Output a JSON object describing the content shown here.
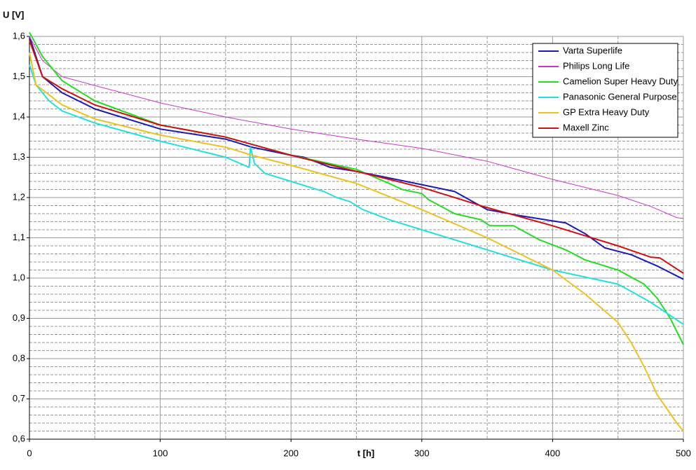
{
  "chart_data": {
    "type": "line",
    "ylabel": "U [V]",
    "xlabel": "t [h]",
    "xlim": [
      0,
      500
    ],
    "xticks": [
      0,
      100,
      200,
      300,
      400,
      500
    ],
    "xminorticks": [
      50,
      150,
      250,
      350,
      450
    ],
    "ylim": [
      0.6,
      1.6
    ],
    "yticks": [
      {
        "value": 0.6,
        "label": "0,6"
      },
      {
        "value": 0.7,
        "label": "0,7"
      },
      {
        "value": 0.8,
        "label": "0,8"
      },
      {
        "value": 0.9,
        "label": "0,9"
      },
      {
        "value": 1.0,
        "label": "1,0"
      },
      {
        "value": 1.1,
        "label": "1,1"
      },
      {
        "value": 1.2,
        "label": "1,2"
      },
      {
        "value": 1.3,
        "label": "1,3"
      },
      {
        "value": 1.4,
        "label": "1,4"
      },
      {
        "value": 1.5,
        "label": "1,5"
      },
      {
        "value": 1.6,
        "label": "1,6"
      }
    ],
    "yminorticks": [
      0.62,
      0.64,
      0.66,
      0.68,
      0.72,
      0.74,
      0.76,
      0.78,
      0.82,
      0.84,
      0.86,
      0.88,
      0.92,
      0.94,
      0.96,
      0.98,
      1.02,
      1.04,
      1.06,
      1.08,
      1.12,
      1.14,
      1.16,
      1.18,
      1.22,
      1.24,
      1.26,
      1.28,
      1.32,
      1.34,
      1.36,
      1.38,
      1.42,
      1.44,
      1.46,
      1.48,
      1.52,
      1.54,
      1.56,
      1.58
    ],
    "grid": true,
    "legend": "upper right",
    "series": [
      {
        "name": "Varta Superlife",
        "color": "#1a1ab4",
        "x": [
          0,
          10,
          25,
          50,
          100,
          150,
          170,
          200,
          210,
          230,
          250,
          300,
          325,
          350,
          375,
          400,
          410,
          425,
          440,
          460,
          480,
          500
        ],
        "values": [
          1.6,
          1.5,
          1.46,
          1.42,
          1.37,
          1.345,
          1.325,
          1.305,
          1.3,
          1.275,
          1.265,
          1.232,
          1.215,
          1.17,
          1.155,
          1.142,
          1.137,
          1.11,
          1.075,
          1.058,
          1.03,
          0.997
        ]
      },
      {
        "name": "Philips Long Life",
        "color": "#cc33cc",
        "x": [
          0,
          10,
          25,
          50,
          100,
          150,
          200,
          250,
          300,
          350,
          400,
          450,
          475,
          495,
          500
        ],
        "values": [
          1.6,
          1.54,
          1.5,
          1.478,
          1.435,
          1.4,
          1.37,
          1.345,
          1.322,
          1.29,
          1.245,
          1.205,
          1.178,
          1.15,
          1.148
        ]
      },
      {
        "name": "Camelion Super Heavy Duty",
        "color": "#22dd22",
        "x": [
          0,
          10,
          25,
          50,
          100,
          150,
          200,
          250,
          275,
          285,
          300,
          305,
          325,
          345,
          352,
          370,
          390,
          410,
          425,
          450,
          470,
          480,
          490,
          500
        ],
        "values": [
          1.61,
          1.55,
          1.49,
          1.44,
          1.38,
          1.35,
          1.305,
          1.27,
          1.235,
          1.22,
          1.21,
          1.195,
          1.16,
          1.145,
          1.13,
          1.13,
          1.095,
          1.07,
          1.045,
          1.02,
          0.985,
          0.95,
          0.9,
          0.835
        ]
      },
      {
        "name": "Panasonic General Purpose",
        "color": "#22e0e0",
        "x": [
          0,
          5,
          15,
          25,
          50,
          100,
          150,
          168,
          169,
          172,
          180,
          200,
          225,
          235,
          245,
          255,
          275,
          300,
          350,
          400,
          450,
          475,
          500
        ],
        "values": [
          1.53,
          1.48,
          1.44,
          1.415,
          1.385,
          1.34,
          1.3,
          1.275,
          1.325,
          1.285,
          1.26,
          1.24,
          1.215,
          1.2,
          1.19,
          1.17,
          1.145,
          1.12,
          1.07,
          1.02,
          0.985,
          0.94,
          0.885
        ]
      },
      {
        "name": "GP Extra Heavy Duty",
        "color": "#f0c020",
        "x": [
          0,
          5,
          25,
          50,
          100,
          150,
          170,
          200,
          250,
          300,
          350,
          375,
          400,
          425,
          450,
          460,
          470,
          480,
          495,
          500
        ],
        "values": [
          1.56,
          1.48,
          1.43,
          1.395,
          1.355,
          1.325,
          1.305,
          1.28,
          1.235,
          1.17,
          1.1,
          1.06,
          1.02,
          0.96,
          0.89,
          0.84,
          0.78,
          0.71,
          0.64,
          0.62
        ]
      },
      {
        "name": "Maxell Zinc",
        "color": "#d01010",
        "x": [
          0,
          10,
          25,
          50,
          100,
          150,
          200,
          250,
          300,
          350,
          400,
          450,
          475,
          482,
          500
        ],
        "values": [
          1.59,
          1.5,
          1.47,
          1.43,
          1.38,
          1.35,
          1.305,
          1.265,
          1.225,
          1.175,
          1.13,
          1.08,
          1.052,
          1.05,
          1.012
        ]
      }
    ]
  }
}
